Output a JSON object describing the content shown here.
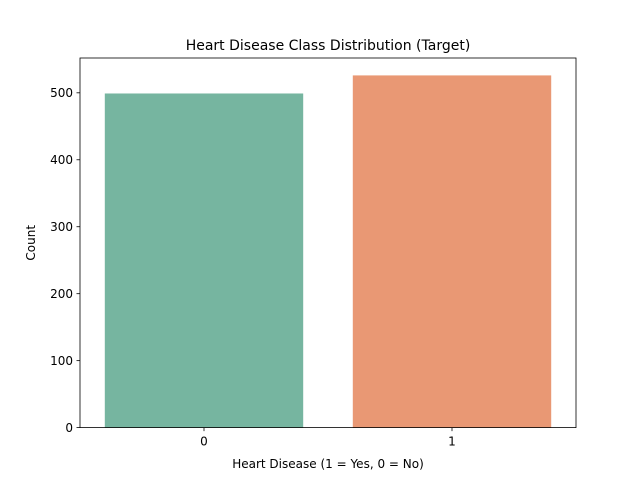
{
  "chart_data": {
    "type": "bar",
    "title": "Heart Disease Class Distribution (Target)",
    "xlabel": "Heart Disease (1 = Yes, 0 = No)",
    "ylabel": "Count",
    "categories": [
      "0",
      "1"
    ],
    "values": [
      499,
      526
    ],
    "colors": [
      "#76b5a0",
      "#e99874"
    ],
    "ylim": [
      0,
      552
    ],
    "yticks": [
      0,
      100,
      200,
      300,
      400,
      500
    ],
    "grid": false,
    "legend": "none"
  }
}
